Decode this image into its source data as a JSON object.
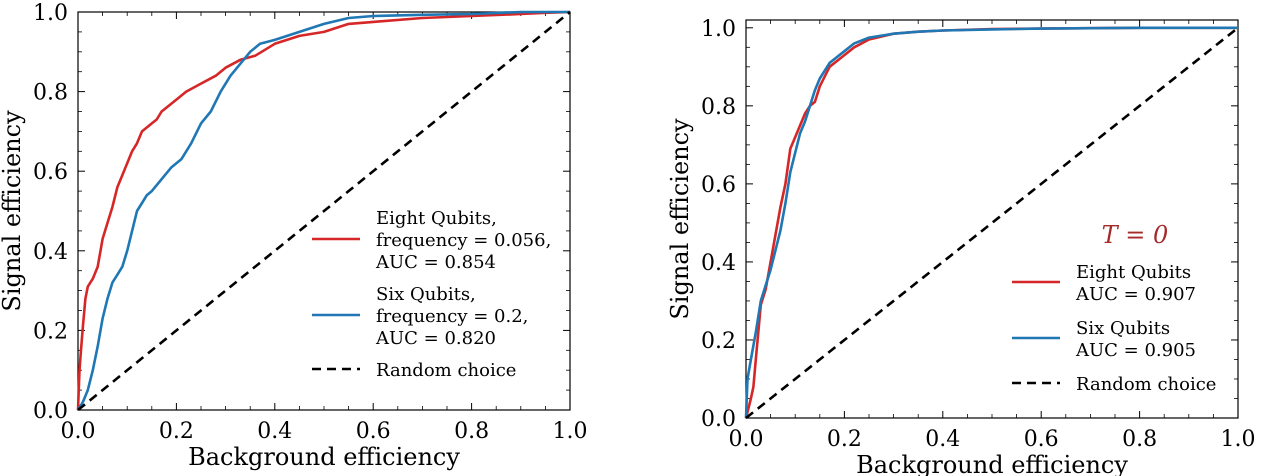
{
  "chart_data": [
    {
      "type": "line",
      "title": "",
      "xlabel": "Background efficiency",
      "ylabel": "Signal efficiency",
      "xlim": [
        0.0,
        1.0
      ],
      "ylim": [
        0.0,
        1.0
      ],
      "xticks": [
        "0.0",
        "0.2",
        "0.4",
        "0.6",
        "0.8",
        "1.0"
      ],
      "yticks": [
        "0.0",
        "0.2",
        "0.4",
        "0.6",
        "0.8",
        "1.0"
      ],
      "grid": false,
      "legend_position": "lower-right",
      "annotation": "",
      "series": [
        {
          "name": "Eight Qubits, frequency = 0.056, AUC = 0.854",
          "legend_lines": [
            "Eight Qubits,",
            "frequency = 0.056,",
            "AUC = 0.854"
          ],
          "color": "#d62728",
          "style": "solid",
          "x": [
            0.0,
            0.003,
            0.006,
            0.01,
            0.015,
            0.02,
            0.03,
            0.04,
            0.05,
            0.06,
            0.07,
            0.08,
            0.09,
            0.1,
            0.11,
            0.12,
            0.13,
            0.14,
            0.15,
            0.16,
            0.17,
            0.18,
            0.2,
            0.22,
            0.25,
            0.28,
            0.3,
            0.33,
            0.36,
            0.4,
            0.45,
            0.5,
            0.55,
            0.6,
            0.7,
            0.8,
            0.9,
            0.95,
            1.0
          ],
          "y": [
            0.0,
            0.1,
            0.15,
            0.21,
            0.28,
            0.31,
            0.33,
            0.36,
            0.43,
            0.47,
            0.51,
            0.56,
            0.59,
            0.62,
            0.65,
            0.67,
            0.7,
            0.71,
            0.72,
            0.73,
            0.75,
            0.76,
            0.78,
            0.8,
            0.82,
            0.84,
            0.86,
            0.88,
            0.89,
            0.92,
            0.94,
            0.95,
            0.97,
            0.975,
            0.985,
            0.99,
            0.995,
            0.998,
            1.0
          ]
        },
        {
          "name": "Six Qubits, frequency = 0.2, AUC = 0.820",
          "legend_lines": [
            "Six Qubits,",
            "frequency = 0.2,",
            "AUC = 0.820"
          ],
          "color": "#1f77b4",
          "style": "solid",
          "x": [
            0.0,
            0.01,
            0.02,
            0.03,
            0.04,
            0.05,
            0.06,
            0.07,
            0.08,
            0.09,
            0.1,
            0.11,
            0.12,
            0.13,
            0.14,
            0.15,
            0.17,
            0.19,
            0.21,
            0.23,
            0.25,
            0.27,
            0.29,
            0.31,
            0.33,
            0.35,
            0.37,
            0.4,
            0.45,
            0.5,
            0.55,
            0.6,
            0.7,
            0.8,
            0.9,
            1.0
          ],
          "y": [
            0.0,
            0.02,
            0.05,
            0.1,
            0.16,
            0.23,
            0.28,
            0.32,
            0.34,
            0.36,
            0.4,
            0.45,
            0.5,
            0.52,
            0.54,
            0.55,
            0.58,
            0.61,
            0.63,
            0.67,
            0.72,
            0.75,
            0.8,
            0.84,
            0.87,
            0.9,
            0.92,
            0.93,
            0.95,
            0.97,
            0.985,
            0.99,
            0.993,
            0.995,
            1.0,
            1.0
          ]
        },
        {
          "name": "Random choice",
          "legend_lines": [
            "Random choice"
          ],
          "color": "#000000",
          "style": "dashed",
          "x": [
            0.0,
            1.0
          ],
          "y": [
            0.0,
            1.0
          ]
        }
      ]
    },
    {
      "type": "line",
      "title": "",
      "xlabel": "Background efficiency",
      "ylabel": "Signal efficiency",
      "xlim": [
        0.0,
        1.0
      ],
      "ylim": [
        0.0,
        1.02
      ],
      "xticks": [
        "0.0",
        "0.2",
        "0.4",
        "0.6",
        "0.8",
        "1.0"
      ],
      "yticks": [
        "0.0",
        "0.2",
        "0.4",
        "0.6",
        "0.8",
        "1.0"
      ],
      "grid": false,
      "legend_position": "lower-right",
      "annotation": "T = 0",
      "annotation_color": "#a52a2a",
      "series": [
        {
          "name": "Eight Qubits AUC = 0.907",
          "legend_lines": [
            "Eight Qubits",
            "AUC = 0.907"
          ],
          "color": "#d62728",
          "style": "solid",
          "x": [
            0.0,
            0.01,
            0.015,
            0.02,
            0.025,
            0.03,
            0.04,
            0.05,
            0.06,
            0.07,
            0.08,
            0.09,
            0.1,
            0.11,
            0.12,
            0.13,
            0.14,
            0.15,
            0.17,
            0.2,
            0.22,
            0.25,
            0.3,
            0.35,
            0.4,
            0.5,
            0.6,
            0.7,
            0.8,
            0.9,
            1.0
          ],
          "y": [
            0.0,
            0.05,
            0.08,
            0.15,
            0.22,
            0.29,
            0.33,
            0.4,
            0.47,
            0.54,
            0.6,
            0.69,
            0.72,
            0.75,
            0.78,
            0.8,
            0.81,
            0.85,
            0.9,
            0.93,
            0.95,
            0.97,
            0.985,
            0.99,
            0.993,
            0.997,
            0.998,
            0.999,
            1.0,
            1.0,
            1.0
          ]
        },
        {
          "name": "Six Qubits AUC = 0.905",
          "legend_lines": [
            "Six Qubits",
            "AUC = 0.905"
          ],
          "color": "#1f77b4",
          "style": "solid",
          "x": [
            0.0,
            0.003,
            0.01,
            0.02,
            0.03,
            0.04,
            0.05,
            0.06,
            0.07,
            0.08,
            0.09,
            0.1,
            0.11,
            0.12,
            0.13,
            0.14,
            0.15,
            0.17,
            0.2,
            0.22,
            0.25,
            0.3,
            0.35,
            0.4,
            0.5,
            0.6,
            0.7,
            0.8,
            0.9,
            1.0
          ],
          "y": [
            0.0,
            0.1,
            0.15,
            0.22,
            0.3,
            0.34,
            0.38,
            0.43,
            0.48,
            0.55,
            0.63,
            0.68,
            0.73,
            0.76,
            0.8,
            0.84,
            0.87,
            0.91,
            0.94,
            0.96,
            0.975,
            0.985,
            0.99,
            0.993,
            0.996,
            0.998,
            0.999,
            1.0,
            1.0,
            1.0
          ]
        },
        {
          "name": "Random choice",
          "legend_lines": [
            "Random choice"
          ],
          "color": "#000000",
          "style": "dashed",
          "x": [
            0.0,
            1.0
          ],
          "y": [
            0.0,
            1.0
          ]
        }
      ]
    }
  ]
}
